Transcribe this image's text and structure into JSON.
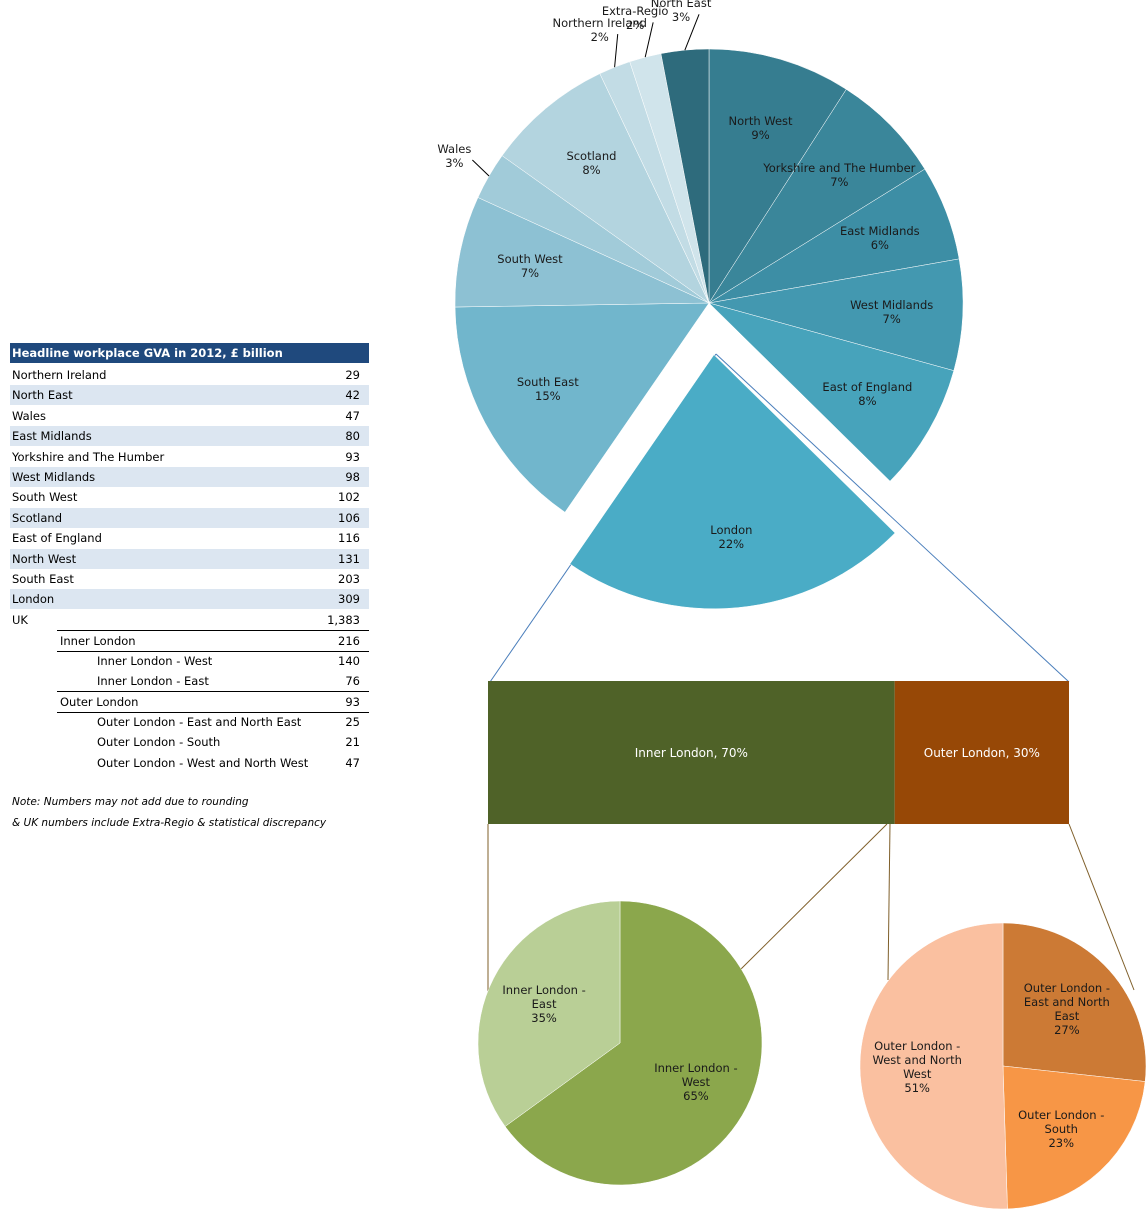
{
  "table": {
    "title": "Headline workplace GVA in 2012, £ billion",
    "rows": [
      [
        "Northern Ireland",
        29
      ],
      [
        "North East",
        42
      ],
      [
        "Wales",
        47
      ],
      [
        "East Midlands",
        80
      ],
      [
        "Yorkshire and The Humber",
        93
      ],
      [
        "West Midlands",
        98
      ],
      [
        "South West",
        102
      ],
      [
        "Scotland",
        106
      ],
      [
        "East of England",
        116
      ],
      [
        "North West",
        131
      ],
      [
        "South East",
        203
      ],
      [
        "London",
        309
      ],
      [
        "UK",
        "1,383"
      ],
      [
        "Inner London",
        216
      ],
      [
        "Inner London - West",
        140
      ],
      [
        "Inner London - East",
        76
      ],
      [
        "Outer London",
        93
      ],
      [
        "Outer London - East and North East",
        25
      ],
      [
        "Outer London - South",
        21
      ],
      [
        "Outer London - West and North West",
        47
      ]
    ],
    "notes": [
      "Note: Numbers may not add due to rounding",
      "& UK numbers include Extra-Regio & statistical discrepancy"
    ]
  },
  "chart_data": [
    {
      "type": "pie",
      "categories": [
        "North West",
        "Yorkshire and The Humber",
        "East Midlands",
        "West Midlands",
        "East of England",
        "London",
        "South East",
        "South West",
        "Wales",
        "Scotland",
        "Northern Ireland",
        "Extra-Regio",
        "North East"
      ],
      "values": [
        9,
        7,
        6,
        7,
        8,
        22,
        15,
        7,
        3,
        8,
        2,
        2,
        3
      ],
      "value_labels": [
        "9%",
        "7%",
        "6%",
        "7%",
        "8%",
        "22%",
        "15%",
        "7%",
        "3%",
        "8%",
        "2%",
        "2%",
        "3%"
      ],
      "colors": [
        "#367d90",
        "#3a869a",
        "#3d8ea5",
        "#4398b0",
        "#47a3bb",
        "#4aacc6",
        "#71b6cc",
        "#8dc1d3",
        "#a1cbd9",
        "#b3d4df",
        "#c2dce5",
        "#d0e4eb",
        "#2e6b7c"
      ],
      "exploded": "London"
    },
    {
      "type": "stacked_bar",
      "series": [
        {
          "name": "Inner London",
          "color": "#4f6228",
          "values": [
            70
          ],
          "value_labels": [
            "Inner London, 70%"
          ]
        },
        {
          "name": "Outer London",
          "color": "#974806",
          "values": [
            30
          ],
          "value_labels": [
            "Outer London, 30%"
          ]
        }
      ]
    },
    {
      "type": "pie",
      "categories": [
        "Inner London - West",
        "Inner London - East"
      ],
      "values": [
        65,
        35
      ],
      "value_labels": [
        "65%",
        "35%"
      ],
      "colors": [
        "#8ba74c",
        "#b9cf96"
      ]
    },
    {
      "type": "pie",
      "categories": [
        "Outer London - East and North East",
        "Outer London - South",
        "Outer London - West and North West"
      ],
      "values": [
        27,
        23,
        51
      ],
      "value_labels": [
        "27%",
        "23%",
        "51%"
      ],
      "colors": [
        "#cc7a35",
        "#f79646",
        "#fac0a0"
      ]
    }
  ]
}
